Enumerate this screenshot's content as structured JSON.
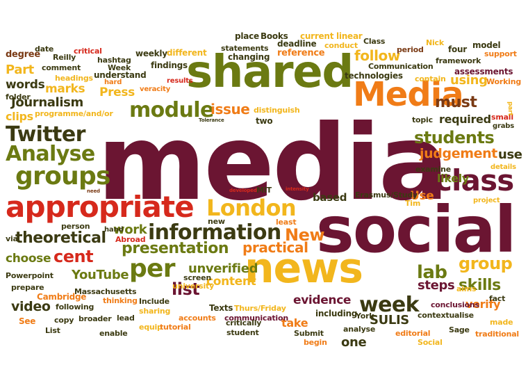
{
  "palette": {
    "maroon": "#6b1532",
    "red": "#d6291c",
    "orange": "#f07c17",
    "gold": "#f2b61d",
    "olive": "#6b7a12",
    "dark": "#3b3a12",
    "brown": "#7a3a14"
  },
  "words": [
    {
      "text": "media",
      "color": "maroon"
    },
    {
      "text": "social",
      "color": "maroon"
    },
    {
      "text": "shared",
      "color": "olive"
    },
    {
      "text": "news",
      "color": "gold"
    },
    {
      "text": "Media",
      "color": "orange"
    },
    {
      "text": "appropriate",
      "color": "red"
    },
    {
      "text": "London",
      "color": "gold"
    },
    {
      "text": "class",
      "color": "maroon"
    },
    {
      "text": "information",
      "color": "dark"
    },
    {
      "text": "groups",
      "color": "olive"
    },
    {
      "text": "Twitter",
      "color": "dark"
    },
    {
      "text": "Analyse",
      "color": "olive"
    },
    {
      "text": "module",
      "color": "olive"
    },
    {
      "text": "students",
      "color": "olive"
    },
    {
      "text": "per",
      "color": "olive"
    },
    {
      "text": "week",
      "color": "dark"
    },
    {
      "text": "presentation",
      "color": "olive"
    },
    {
      "text": "theoretical",
      "color": "dark"
    },
    {
      "text": "cent",
      "color": "red"
    },
    {
      "text": "New",
      "color": "orange"
    },
    {
      "text": "judgement",
      "color": "orange"
    },
    {
      "text": "must",
      "color": "brown"
    },
    {
      "text": "issue",
      "color": "orange"
    },
    {
      "text": "follow",
      "color": "gold"
    },
    {
      "text": "Press",
      "color": "gold"
    },
    {
      "text": "Journalism",
      "color": "dark"
    },
    {
      "text": "marks",
      "color": "gold"
    },
    {
      "text": "lab",
      "color": "olive"
    },
    {
      "text": "group",
      "color": "gold"
    },
    {
      "text": "skills",
      "color": "olive"
    },
    {
      "text": "practical",
      "color": "orange"
    },
    {
      "text": "work",
      "color": "olive"
    },
    {
      "text": "choose",
      "color": "olive"
    },
    {
      "text": "YouTube",
      "color": "olive"
    },
    {
      "text": "list",
      "color": "maroon"
    },
    {
      "text": "unverified",
      "color": "olive"
    },
    {
      "text": "content",
      "color": "gold"
    },
    {
      "text": "evidence",
      "color": "maroon"
    },
    {
      "text": "take",
      "color": "orange"
    },
    {
      "text": "steps",
      "color": "maroon"
    },
    {
      "text": "one",
      "color": "dark"
    },
    {
      "text": "verify",
      "color": "orange"
    },
    {
      "text": "video",
      "color": "dark"
    },
    {
      "text": "based",
      "color": "dark"
    },
    {
      "text": "required",
      "color": "dark"
    },
    {
      "text": "using",
      "color": "gold"
    },
    {
      "text": "likely",
      "color": "olive"
    },
    {
      "text": "use",
      "color": "dark"
    },
    {
      "text": "Use",
      "color": "orange"
    },
    {
      "text": "words",
      "color": "dark"
    },
    {
      "text": "Part",
      "color": "gold"
    },
    {
      "text": "clips",
      "color": "gold"
    },
    {
      "text": "SULIS",
      "color": "dark"
    },
    {
      "text": "degree",
      "color": "brown"
    },
    {
      "text": "weekly",
      "color": "dark"
    },
    {
      "text": "different",
      "color": "gold"
    },
    {
      "text": "statements",
      "color": "dark"
    },
    {
      "text": "changing",
      "color": "dark"
    },
    {
      "text": "deadline",
      "color": "dark"
    },
    {
      "text": "reference",
      "color": "orange"
    },
    {
      "text": "place",
      "color": "dark"
    },
    {
      "text": "Books",
      "color": "dark"
    },
    {
      "text": "current",
      "color": "gold"
    },
    {
      "text": "linear",
      "color": "gold"
    },
    {
      "text": "conduct",
      "color": "gold"
    },
    {
      "text": "Class",
      "color": "dark"
    },
    {
      "text": "Nick",
      "color": "gold"
    },
    {
      "text": "period",
      "color": "brown"
    },
    {
      "text": "four",
      "color": "dark"
    },
    {
      "text": "model",
      "color": "dark"
    },
    {
      "text": "support",
      "color": "orange"
    },
    {
      "text": "framework",
      "color": "dark"
    },
    {
      "text": "Communication",
      "color": "dark"
    },
    {
      "text": "technologies",
      "color": "dark"
    },
    {
      "text": "assessments",
      "color": "maroon"
    },
    {
      "text": "contain",
      "color": "gold"
    },
    {
      "text": "Working",
      "color": "orange"
    },
    {
      "text": "date",
      "color": "dark"
    },
    {
      "text": "Reilly",
      "color": "dark"
    },
    {
      "text": "critical",
      "color": "red"
    },
    {
      "text": "hashtag",
      "color": "dark"
    },
    {
      "text": "Week",
      "color": "dark"
    },
    {
      "text": "comment",
      "color": "dark"
    },
    {
      "text": "findings",
      "color": "dark"
    },
    {
      "text": "understand",
      "color": "dark"
    },
    {
      "text": "headings",
      "color": "gold"
    },
    {
      "text": "hard",
      "color": "orange"
    },
    {
      "text": "results",
      "color": "red"
    },
    {
      "text": "veracity",
      "color": "orange"
    },
    {
      "text": "folder",
      "color": "dark"
    },
    {
      "text": "programme/and/or",
      "color": "gold"
    },
    {
      "text": "distinguish",
      "color": "gold"
    },
    {
      "text": "Tolerance",
      "color": "dark"
    },
    {
      "text": "two",
      "color": "dark"
    },
    {
      "text": "topic",
      "color": "dark"
    },
    {
      "text": "small",
      "color": "red"
    },
    {
      "text": "grabs",
      "color": "dark"
    },
    {
      "text": "part",
      "color": "gold"
    },
    {
      "text": "examine",
      "color": "dark"
    },
    {
      "text": "details",
      "color": "gold"
    },
    {
      "text": "need",
      "color": "brown"
    },
    {
      "text": "developed",
      "color": "red"
    },
    {
      "text": "MIT",
      "color": "dark"
    },
    {
      "text": "intensity",
      "color": "red"
    },
    {
      "text": "Erasmus/Study",
      "color": "dark"
    },
    {
      "text": "Tim",
      "color": "gold"
    },
    {
      "text": "project",
      "color": "gold"
    },
    {
      "text": "via",
      "color": "dark"
    },
    {
      "text": "person",
      "color": "dark"
    },
    {
      "text": "hand",
      "color": "dark"
    },
    {
      "text": "new",
      "color": "dark"
    },
    {
      "text": "least",
      "color": "orange"
    },
    {
      "text": "Abroad",
      "color": "red"
    },
    {
      "text": "Powerpoint",
      "color": "dark"
    },
    {
      "text": "prepare",
      "color": "dark"
    },
    {
      "text": "Massachusetts",
      "color": "dark"
    },
    {
      "text": "Cambridge",
      "color": "orange"
    },
    {
      "text": "screen",
      "color": "dark"
    },
    {
      "text": "university",
      "color": "gold"
    },
    {
      "text": "aims",
      "color": "gold"
    },
    {
      "text": "fact",
      "color": "dark"
    },
    {
      "text": "thinking",
      "color": "orange"
    },
    {
      "text": "Include",
      "color": "dark"
    },
    {
      "text": "following",
      "color": "dark"
    },
    {
      "text": "sharing",
      "color": "gold"
    },
    {
      "text": "conclusions",
      "color": "maroon"
    },
    {
      "text": "Texts",
      "color": "dark"
    },
    {
      "text": "Thurs/Friday",
      "color": "gold"
    },
    {
      "text": "communication",
      "color": "maroon"
    },
    {
      "text": "including",
      "color": "dark"
    },
    {
      "text": "York",
      "color": "dark"
    },
    {
      "text": "contextualise",
      "color": "dark"
    },
    {
      "text": "See",
      "color": "orange"
    },
    {
      "text": "copy",
      "color": "dark"
    },
    {
      "text": "broader",
      "color": "dark"
    },
    {
      "text": "lead",
      "color": "dark"
    },
    {
      "text": "accounts",
      "color": "orange"
    },
    {
      "text": "critically",
      "color": "dark"
    },
    {
      "text": "made",
      "color": "gold"
    },
    {
      "text": "List",
      "color": "dark"
    },
    {
      "text": "enable",
      "color": "dark"
    },
    {
      "text": "equip",
      "color": "gold"
    },
    {
      "text": "tutorial",
      "color": "orange"
    },
    {
      "text": "student",
      "color": "dark"
    },
    {
      "text": "Submit",
      "color": "dark"
    },
    {
      "text": "analyse",
      "color": "dark"
    },
    {
      "text": "editorial",
      "color": "orange"
    },
    {
      "text": "Sage",
      "color": "dark"
    },
    {
      "text": "traditional",
      "color": "orange"
    },
    {
      "text": "begin",
      "color": "orange"
    },
    {
      "text": "Social",
      "color": "gold"
    }
  ]
}
